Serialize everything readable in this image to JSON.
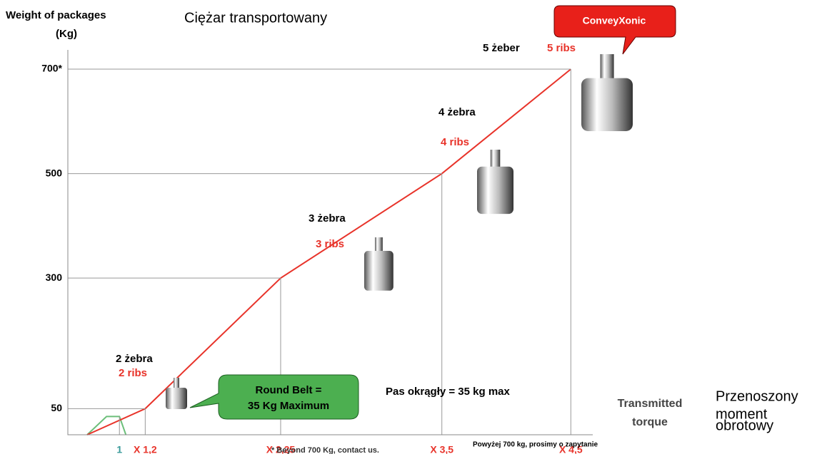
{
  "chart_data": {
    "type": "line",
    "y_axis_label": [
      "Weight of packages",
      "(Kg)"
    ],
    "subtitle": "Ciężar transportowany",
    "x_axis_label": [
      "Transmitted",
      "torque"
    ],
    "x_axis_label_pl": [
      "Przenoszony",
      "moment",
      "obrotowy"
    ],
    "xlim": [
      0.6,
      4.67
    ],
    "ylim": [
      0,
      700
    ],
    "xticks": [
      1,
      {
        "value": 1.2,
        "label": "X 1,2"
      },
      {
        "value": 2.25,
        "label": "X 2,25"
      },
      {
        "value": 3.5,
        "label": "X 3,5"
      },
      {
        "value": 4.5,
        "label": "X 4,5"
      }
    ],
    "yticks": [
      50,
      300,
      500,
      {
        "value": 700,
        "label": "700*"
      }
    ],
    "series": [
      {
        "color": "#e8332a",
        "x": [
          0.75,
          1.2,
          2.25,
          3.5,
          4.5
        ],
        "values": [
          0,
          50,
          300,
          500,
          700
        ]
      },
      {
        "color": "#6cbf7a",
        "x": [
          0.75,
          0.9,
          1.0,
          1.05
        ],
        "values": [
          0,
          35,
          35,
          0
        ]
      }
    ],
    "annotations": {
      "rib2_pl": "2 żebra",
      "rib2": "2 ribs",
      "rib3_pl": "3 żebra",
      "rib3": "3 ribs",
      "rib4_pl": "4 żebra",
      "rib4": "4 ribs",
      "rib5_pl": "5 żeber",
      "rib5": "5 ribs",
      "brand": "ConveyXonic",
      "round_belt": [
        "Round Belt =",
        "35 Kg Maximum"
      ],
      "round_belt_pl": "Pas okrągły = 35 kg max",
      "footnote": "* Beyond 700 Kg, contact us.",
      "footnote_pl": "Powyżej 700 kg, prosimy o zapytanie"
    }
  }
}
